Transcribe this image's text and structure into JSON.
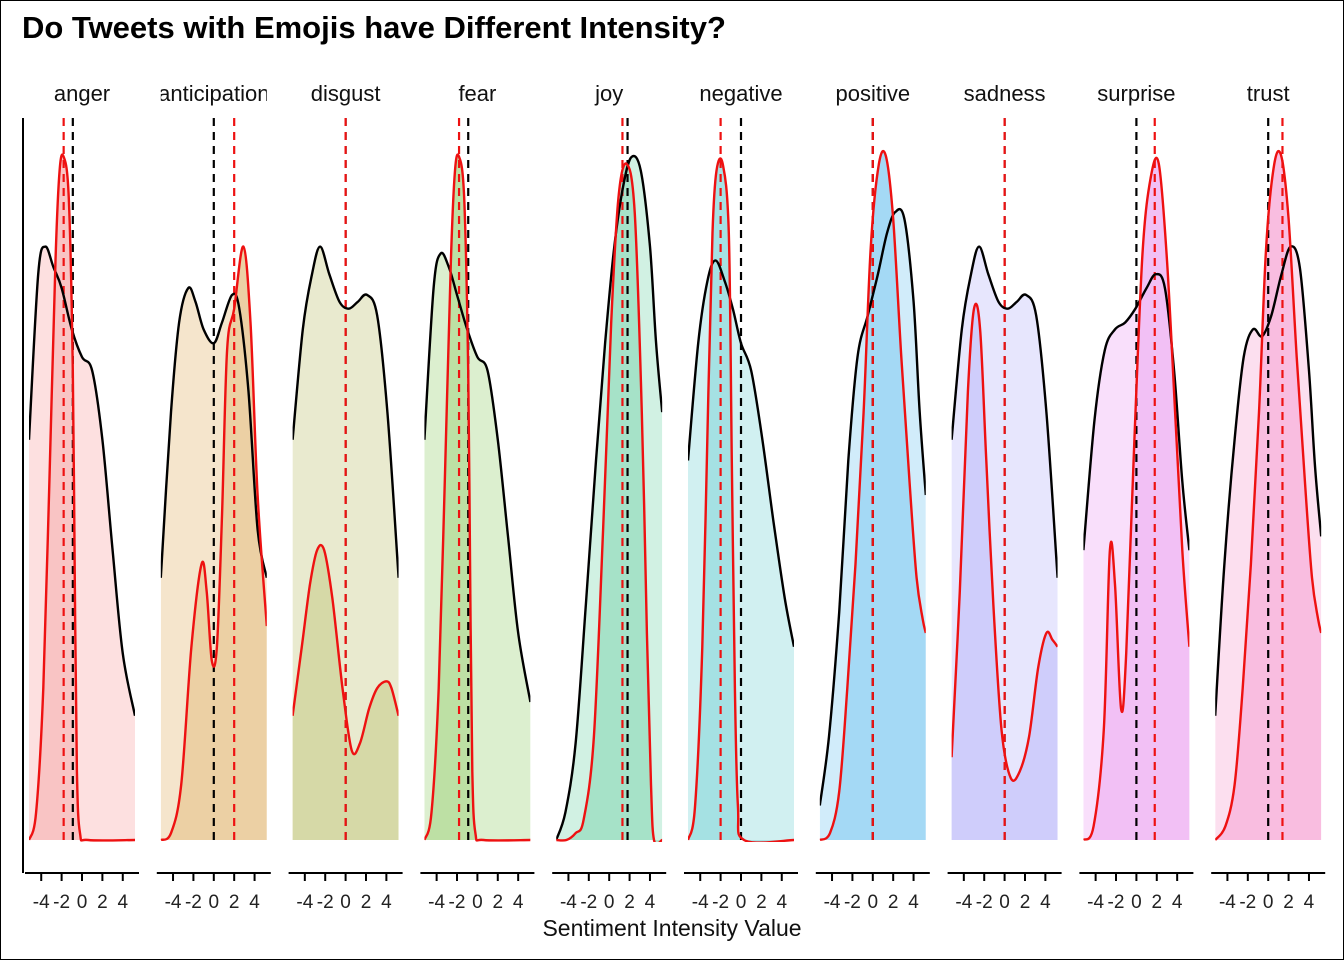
{
  "chart_data": {
    "type": "area",
    "title": "Do Tweets with Emojis have Different Intensity?",
    "xlabel": "Sentiment Intensity Value",
    "ylabel": "",
    "x_ticks": [
      -4,
      -2,
      0,
      2,
      4
    ],
    "x_tick_labels": [
      "-4",
      "-2",
      "0",
      "2",
      "4"
    ],
    "xlim": [
      -5.2,
      5.2
    ],
    "line_colors": {
      "without_emoji": "#000000",
      "with_emoji": "#ee1111"
    },
    "mean_line_colors": {
      "black": "#000000",
      "red": "#ee1111"
    },
    "panels": [
      {
        "name": "anger",
        "fill": "#f9c4c4",
        "fill_light": "#fde0e0",
        "black_mean": -0.9,
        "red_mean": -1.8,
        "black_density": [
          [
            -5.2,
            0.58
          ],
          [
            -4.3,
            0.82
          ],
          [
            -3.6,
            0.86
          ],
          [
            -2.8,
            0.83
          ],
          [
            -2.0,
            0.8
          ],
          [
            -1.0,
            0.74
          ],
          [
            0.0,
            0.7
          ],
          [
            1.0,
            0.68
          ],
          [
            2.0,
            0.58
          ],
          [
            3.0,
            0.42
          ],
          [
            4.0,
            0.27
          ],
          [
            5.2,
            0.18
          ]
        ],
        "red_density": [
          [
            -5.2,
            0.0
          ],
          [
            -4.5,
            0.04
          ],
          [
            -3.8,
            0.22
          ],
          [
            -3.2,
            0.52
          ],
          [
            -2.6,
            0.84
          ],
          [
            -2.2,
            0.97
          ],
          [
            -1.8,
            0.99
          ],
          [
            -1.3,
            0.93
          ],
          [
            -0.9,
            0.68
          ],
          [
            -0.7,
            0.36
          ],
          [
            -0.5,
            0.1
          ],
          [
            -0.2,
            0.01
          ],
          [
            0.6,
            0.0
          ],
          [
            5.2,
            0.0
          ]
        ]
      },
      {
        "name": "anticipation",
        "fill": "#ecd0a4",
        "fill_light": "#f5e5cc",
        "black_mean": 0.0,
        "red_mean": 2.0,
        "black_density": [
          [
            -5.2,
            0.38
          ],
          [
            -4.2,
            0.62
          ],
          [
            -3.4,
            0.75
          ],
          [
            -2.5,
            0.8
          ],
          [
            -1.8,
            0.78
          ],
          [
            -1.0,
            0.74
          ],
          [
            0.0,
            0.72
          ],
          [
            0.8,
            0.75
          ],
          [
            1.8,
            0.79
          ],
          [
            2.5,
            0.77
          ],
          [
            3.4,
            0.65
          ],
          [
            4.3,
            0.45
          ],
          [
            5.2,
            0.38
          ]
        ],
        "red_density": [
          [
            -5.2,
            0.0
          ],
          [
            -4.2,
            0.01
          ],
          [
            -3.2,
            0.08
          ],
          [
            -2.2,
            0.28
          ],
          [
            -1.2,
            0.4
          ],
          [
            -0.7,
            0.36
          ],
          [
            -0.2,
            0.26
          ],
          [
            0.3,
            0.28
          ],
          [
            0.8,
            0.47
          ],
          [
            1.3,
            0.71
          ],
          [
            2.0,
            0.77
          ],
          [
            2.9,
            0.86
          ],
          [
            3.6,
            0.75
          ],
          [
            4.3,
            0.5
          ],
          [
            5.2,
            0.31
          ]
        ]
      },
      {
        "name": "disgust",
        "fill": "#d6d9a7",
        "fill_light": "#e9eacf",
        "black_mean": 0.0,
        "red_mean": 0.0,
        "black_density": [
          [
            -5.2,
            0.58
          ],
          [
            -4.2,
            0.74
          ],
          [
            -3.3,
            0.82
          ],
          [
            -2.5,
            0.86
          ],
          [
            -1.6,
            0.82
          ],
          [
            -0.6,
            0.78
          ],
          [
            0.3,
            0.77
          ],
          [
            1.2,
            0.78
          ],
          [
            2.1,
            0.79
          ],
          [
            3.1,
            0.76
          ],
          [
            4.1,
            0.62
          ],
          [
            5.2,
            0.38
          ]
        ],
        "red_density": [
          [
            -5.2,
            0.18
          ],
          [
            -4.3,
            0.28
          ],
          [
            -3.5,
            0.37
          ],
          [
            -2.8,
            0.42
          ],
          [
            -2.1,
            0.42
          ],
          [
            -1.3,
            0.35
          ],
          [
            -0.3,
            0.22
          ],
          [
            0.6,
            0.13
          ],
          [
            1.4,
            0.14
          ],
          [
            2.3,
            0.19
          ],
          [
            3.1,
            0.22
          ],
          [
            4.0,
            0.23
          ],
          [
            4.5,
            0.22
          ],
          [
            5.2,
            0.18
          ]
        ]
      },
      {
        "name": "fear",
        "fill": "#bde0a4",
        "fill_light": "#dcefcf",
        "black_mean": -0.9,
        "red_mean": -1.8,
        "black_density": [
          [
            -5.2,
            0.58
          ],
          [
            -4.3,
            0.8
          ],
          [
            -3.6,
            0.85
          ],
          [
            -2.8,
            0.83
          ],
          [
            -2.0,
            0.79
          ],
          [
            -1.0,
            0.74
          ],
          [
            0.0,
            0.7
          ],
          [
            1.0,
            0.68
          ],
          [
            2.0,
            0.58
          ],
          [
            3.0,
            0.44
          ],
          [
            4.0,
            0.3
          ],
          [
            5.2,
            0.2
          ]
        ],
        "red_density": [
          [
            -5.2,
            0.0
          ],
          [
            -4.5,
            0.04
          ],
          [
            -3.8,
            0.22
          ],
          [
            -3.2,
            0.52
          ],
          [
            -2.6,
            0.84
          ],
          [
            -2.2,
            0.97
          ],
          [
            -1.8,
            0.99
          ],
          [
            -1.3,
            0.93
          ],
          [
            -0.9,
            0.68
          ],
          [
            -0.7,
            0.36
          ],
          [
            -0.5,
            0.1
          ],
          [
            -0.2,
            0.01
          ],
          [
            0.6,
            0.0
          ],
          [
            5.2,
            0.0
          ]
        ]
      },
      {
        "name": "joy",
        "fill": "#a6e2c8",
        "fill_light": "#d1f1e3",
        "black_mean": 1.8,
        "red_mean": 1.3,
        "black_density": [
          [
            -5.2,
            0.0
          ],
          [
            -4.3,
            0.04
          ],
          [
            -3.3,
            0.14
          ],
          [
            -2.3,
            0.34
          ],
          [
            -1.3,
            0.55
          ],
          [
            -0.4,
            0.72
          ],
          [
            0.5,
            0.86
          ],
          [
            1.4,
            0.95
          ],
          [
            2.2,
            0.99
          ],
          [
            3.1,
            0.97
          ],
          [
            4.0,
            0.86
          ],
          [
            4.6,
            0.72
          ],
          [
            5.2,
            0.62
          ]
        ],
        "red_density": [
          [
            -5.2,
            0.0
          ],
          [
            -4.2,
            0.0
          ],
          [
            -3.3,
            0.01
          ],
          [
            -2.5,
            0.03
          ],
          [
            -1.5,
            0.15
          ],
          [
            -0.6,
            0.45
          ],
          [
            0.2,
            0.75
          ],
          [
            0.9,
            0.93
          ],
          [
            1.7,
            0.98
          ],
          [
            2.5,
            0.91
          ],
          [
            3.2,
            0.62
          ],
          [
            3.7,
            0.3
          ],
          [
            4.1,
            0.08
          ],
          [
            4.4,
            0.0
          ],
          [
            5.2,
            0.0
          ]
        ]
      },
      {
        "name": "negative",
        "fill": "#a5e1e3",
        "fill_light": "#d1f0f1",
        "black_mean": 0.0,
        "red_mean": -2.0,
        "black_density": [
          [
            -5.2,
            0.55
          ],
          [
            -4.2,
            0.72
          ],
          [
            -3.3,
            0.81
          ],
          [
            -2.5,
            0.84
          ],
          [
            -1.6,
            0.81
          ],
          [
            -0.8,
            0.77
          ],
          [
            0.0,
            0.72
          ],
          [
            1.0,
            0.68
          ],
          [
            2.1,
            0.58
          ],
          [
            3.2,
            0.46
          ],
          [
            4.3,
            0.35
          ],
          [
            5.2,
            0.28
          ]
        ],
        "red_density": [
          [
            -5.2,
            0.0
          ],
          [
            -4.5,
            0.05
          ],
          [
            -3.8,
            0.28
          ],
          [
            -3.2,
            0.65
          ],
          [
            -2.8,
            0.88
          ],
          [
            -2.4,
            0.97
          ],
          [
            -1.8,
            0.98
          ],
          [
            -1.2,
            0.88
          ],
          [
            -0.9,
            0.55
          ],
          [
            -0.6,
            0.22
          ],
          [
            -0.3,
            0.05
          ],
          [
            0.3,
            0.0
          ],
          [
            5.2,
            0.0
          ]
        ]
      },
      {
        "name": "positive",
        "fill": "#a4d9f5",
        "fill_light": "#d1ecfa",
        "black_mean": 0.0,
        "red_mean": 0.0,
        "black_density": [
          [
            -5.2,
            0.05
          ],
          [
            -4.3,
            0.15
          ],
          [
            -3.3,
            0.33
          ],
          [
            -2.4,
            0.55
          ],
          [
            -1.5,
            0.7
          ],
          [
            -0.5,
            0.76
          ],
          [
            0.5,
            0.82
          ],
          [
            1.4,
            0.88
          ],
          [
            2.2,
            0.91
          ],
          [
            3.1,
            0.9
          ],
          [
            4.0,
            0.78
          ],
          [
            4.6,
            0.62
          ],
          [
            5.2,
            0.5
          ]
        ],
        "red_density": [
          [
            -5.2,
            0.0
          ],
          [
            -4.2,
            0.01
          ],
          [
            -3.3,
            0.07
          ],
          [
            -2.5,
            0.22
          ],
          [
            -1.7,
            0.4
          ],
          [
            -0.9,
            0.62
          ],
          [
            -0.2,
            0.86
          ],
          [
            0.6,
            0.98
          ],
          [
            1.3,
            0.99
          ],
          [
            2.0,
            0.9
          ],
          [
            2.8,
            0.7
          ],
          [
            3.6,
            0.52
          ],
          [
            4.3,
            0.38
          ],
          [
            4.9,
            0.32
          ],
          [
            5.2,
            0.3
          ]
        ]
      },
      {
        "name": "sadness",
        "fill": "#cfcdfb",
        "fill_light": "#e7e6fd",
        "black_mean": 0.0,
        "red_mean": 0.0,
        "black_density": [
          [
            -5.2,
            0.58
          ],
          [
            -4.2,
            0.74
          ],
          [
            -3.3,
            0.82
          ],
          [
            -2.5,
            0.86
          ],
          [
            -1.6,
            0.82
          ],
          [
            -0.6,
            0.78
          ],
          [
            0.3,
            0.77
          ],
          [
            1.2,
            0.78
          ],
          [
            2.1,
            0.79
          ],
          [
            3.1,
            0.76
          ],
          [
            4.1,
            0.62
          ],
          [
            5.2,
            0.38
          ]
        ],
        "red_density": [
          [
            -5.2,
            0.12
          ],
          [
            -4.4,
            0.36
          ],
          [
            -3.6,
            0.65
          ],
          [
            -3.0,
            0.77
          ],
          [
            -2.4,
            0.74
          ],
          [
            -1.8,
            0.55
          ],
          [
            -1.1,
            0.34
          ],
          [
            -0.3,
            0.16
          ],
          [
            0.6,
            0.09
          ],
          [
            1.5,
            0.1
          ],
          [
            2.4,
            0.15
          ],
          [
            3.3,
            0.25
          ],
          [
            4.1,
            0.3
          ],
          [
            4.7,
            0.29
          ],
          [
            5.2,
            0.28
          ]
        ]
      },
      {
        "name": "surprise",
        "fill": "#f2c0f5",
        "fill_light": "#f9dffb",
        "black_mean": 0.0,
        "red_mean": 1.8,
        "black_density": [
          [
            -5.2,
            0.42
          ],
          [
            -4.1,
            0.61
          ],
          [
            -3.1,
            0.71
          ],
          [
            -2.1,
            0.74
          ],
          [
            -1.1,
            0.75
          ],
          [
            -0.1,
            0.77
          ],
          [
            1.0,
            0.8
          ],
          [
            1.9,
            0.82
          ],
          [
            2.8,
            0.8
          ],
          [
            3.7,
            0.68
          ],
          [
            4.5,
            0.52
          ],
          [
            5.2,
            0.42
          ]
        ],
        "red_density": [
          [
            -5.2,
            0.0
          ],
          [
            -4.2,
            0.02
          ],
          [
            -3.2,
            0.16
          ],
          [
            -2.6,
            0.42
          ],
          [
            -2.1,
            0.37
          ],
          [
            -1.5,
            0.19
          ],
          [
            -1.0,
            0.27
          ],
          [
            -0.2,
            0.58
          ],
          [
            0.6,
            0.85
          ],
          [
            1.4,
            0.96
          ],
          [
            2.2,
            0.98
          ],
          [
            3.0,
            0.84
          ],
          [
            3.8,
            0.62
          ],
          [
            4.5,
            0.42
          ],
          [
            5.2,
            0.28
          ]
        ]
      },
      {
        "name": "trust",
        "fill": "#f9bde0",
        "fill_light": "#fcdfef",
        "black_mean": 0.0,
        "red_mean": 1.4,
        "black_density": [
          [
            -5.2,
            0.18
          ],
          [
            -4.3,
            0.4
          ],
          [
            -3.3,
            0.58
          ],
          [
            -2.4,
            0.7
          ],
          [
            -1.5,
            0.74
          ],
          [
            -0.6,
            0.73
          ],
          [
            0.3,
            0.76
          ],
          [
            1.3,
            0.82
          ],
          [
            2.2,
            0.86
          ],
          [
            3.1,
            0.83
          ],
          [
            4.0,
            0.68
          ],
          [
            4.6,
            0.54
          ],
          [
            5.2,
            0.44
          ]
        ],
        "red_density": [
          [
            -5.2,
            0.0
          ],
          [
            -4.2,
            0.02
          ],
          [
            -3.3,
            0.08
          ],
          [
            -2.5,
            0.22
          ],
          [
            -1.7,
            0.4
          ],
          [
            -0.9,
            0.62
          ],
          [
            -0.2,
            0.86
          ],
          [
            0.6,
            0.98
          ],
          [
            1.3,
            0.99
          ],
          [
            2.0,
            0.9
          ],
          [
            2.8,
            0.7
          ],
          [
            3.6,
            0.52
          ],
          [
            4.3,
            0.38
          ],
          [
            4.9,
            0.32
          ],
          [
            5.2,
            0.3
          ]
        ]
      }
    ]
  }
}
